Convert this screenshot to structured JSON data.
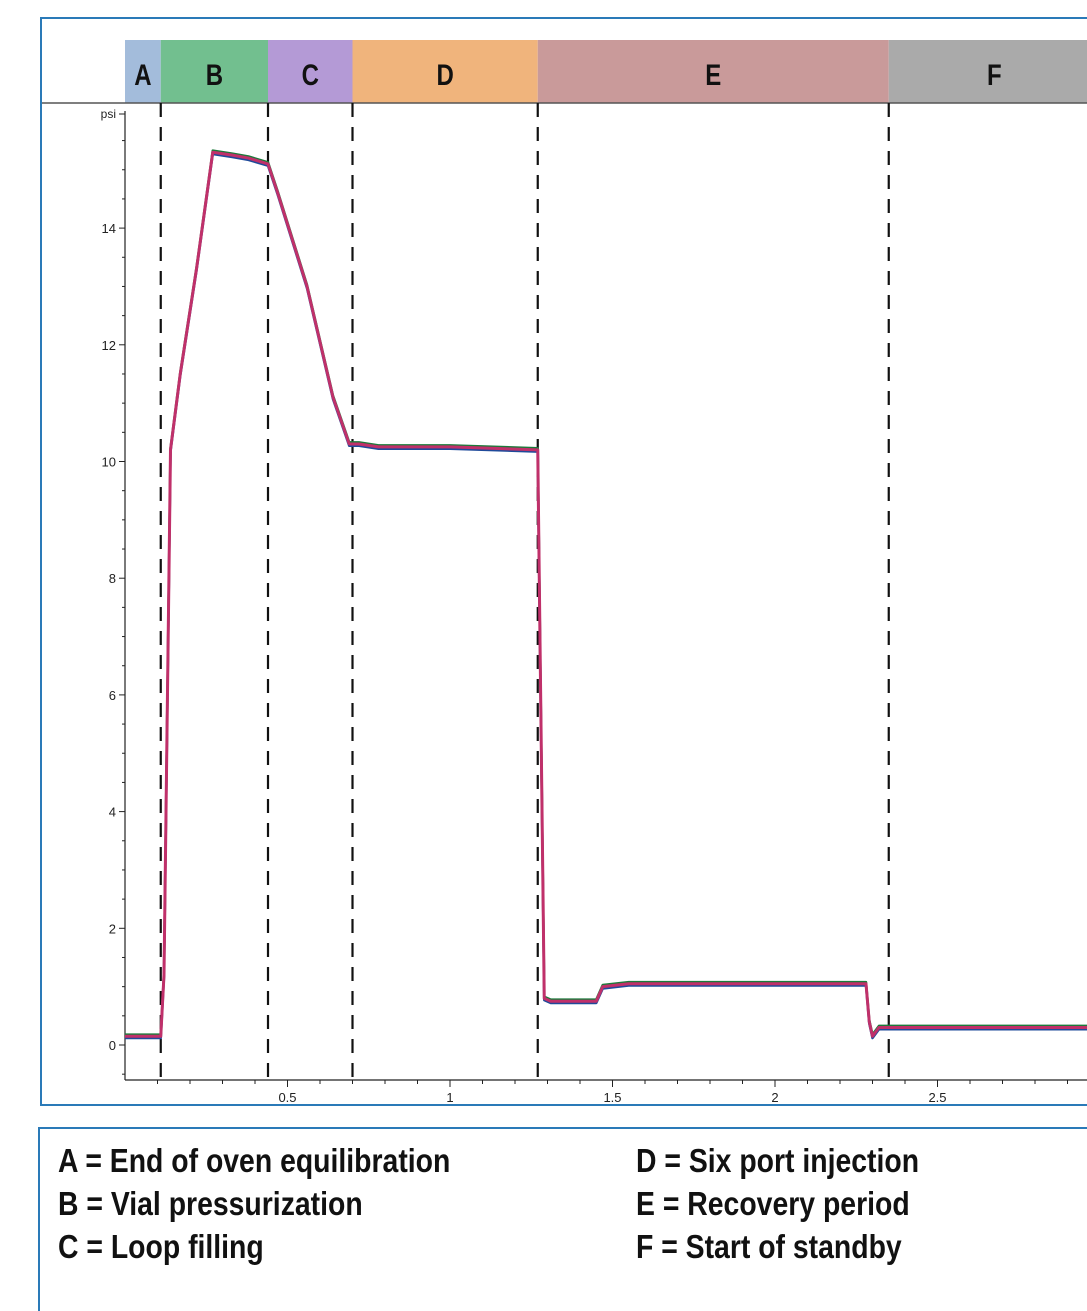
{
  "phases": [
    {
      "label": "A",
      "start": 0.0,
      "end": 0.11,
      "color": "#a3bcdb"
    },
    {
      "label": "B",
      "start": 0.11,
      "end": 0.44,
      "color": "#72bf8f"
    },
    {
      "label": "C",
      "start": 0.44,
      "end": 0.7,
      "color": "#b49ad6"
    },
    {
      "label": "D",
      "start": 0.7,
      "end": 1.27,
      "color": "#f0b47c"
    },
    {
      "label": "E",
      "start": 1.27,
      "end": 2.35,
      "color": "#c99a9a"
    },
    {
      "label": "F",
      "start": 2.35,
      "end": 3.0,
      "color": "#aaaaaa"
    }
  ],
  "chart_data": {
    "type": "line",
    "ylabel": "psi",
    "xlabel": "",
    "xlim": [
      0.0,
      3.0
    ],
    "ylim": [
      -0.65,
      15.9
    ],
    "xticks": [
      0.5,
      1,
      1.5,
      2,
      2.5
    ],
    "xtick_labels": [
      "0.5",
      "1",
      "1.5",
      "2",
      "2.5"
    ],
    "yticks": [
      0,
      2,
      4,
      6,
      8,
      10,
      12,
      14
    ],
    "ytick_labels": [
      "0",
      "2",
      "4",
      "6",
      "8",
      "10",
      "12",
      "14"
    ],
    "phase_boundaries": [
      0.11,
      0.44,
      0.7,
      1.27,
      2.35
    ],
    "grid": false,
    "series": [
      {
        "color": "#c0306a",
        "x": [
          0.0,
          0.11,
          0.12,
          0.14,
          0.17,
          0.22,
          0.27,
          0.33,
          0.38,
          0.44,
          0.47,
          0.56,
          0.64,
          0.69,
          0.72,
          0.78,
          1.0,
          1.27,
          1.28,
          1.29,
          1.31,
          1.45,
          1.47,
          1.55,
          2.0,
          2.28,
          2.29,
          2.3,
          2.32,
          2.6,
          3.0
        ],
        "y": [
          0.15,
          0.15,
          1.2,
          10.2,
          11.5,
          13.3,
          15.3,
          15.25,
          15.2,
          15.1,
          14.6,
          13.0,
          11.1,
          10.3,
          10.3,
          10.25,
          10.25,
          10.2,
          5.5,
          0.8,
          0.75,
          0.75,
          1.0,
          1.05,
          1.05,
          1.05,
          0.4,
          0.15,
          0.3,
          0.3,
          0.3
        ]
      }
    ],
    "legend_items": [
      "A = End of oven equilibration",
      "B = Vial pressurization",
      "C = Loop filling",
      "D = Six port injection",
      "E = Recovery period",
      "F = Start of standby"
    ]
  }
}
